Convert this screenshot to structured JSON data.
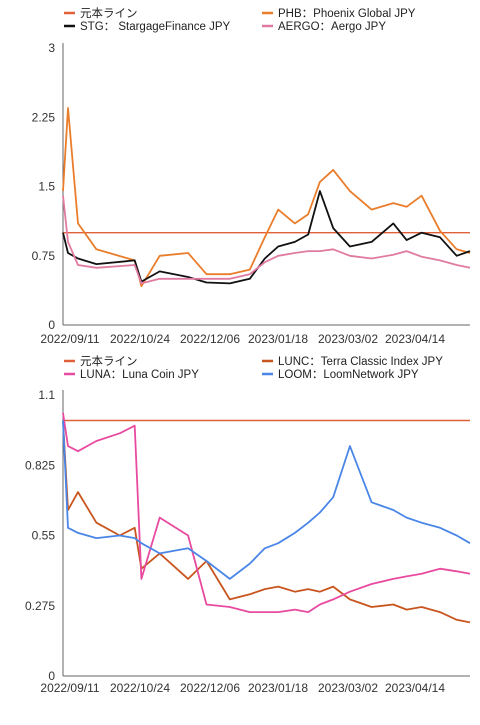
{
  "chart_data": [
    {
      "type": "line",
      "title": "",
      "xlabel": "",
      "ylabel": "",
      "ylim": [
        0,
        3
      ],
      "yticks": [
        "0",
        "0.75",
        "1.5",
        "2.25",
        "3"
      ],
      "xticks": [
        "2022/09/11",
        "2022/10/24",
        "2022/12/06",
        "2023/01/18",
        "2023/03/02",
        "2023/04/14"
      ],
      "x": [
        "2022/09/11",
        "2022/09/14",
        "2022/09/20",
        "2022/10/01",
        "2022/10/24",
        "2022/10/28",
        "2022/11/08",
        "2022/11/25",
        "2022/12/06",
        "2022/12/20",
        "2023/01/01",
        "2023/01/10",
        "2023/01/18",
        "2023/01/28",
        "2023/02/05",
        "2023/02/12",
        "2023/02/20",
        "2023/03/02",
        "2023/03/15",
        "2023/03/28",
        "2023/04/05",
        "2023/04/14",
        "2023/04/25",
        "2023/05/05",
        "2023/05/13"
      ],
      "grid": false,
      "legend_position": "top",
      "series": [
        {
          "name": "元本ライン",
          "color": "#e0603a",
          "values": [
            1,
            1,
            1,
            1,
            1,
            1,
            1,
            1,
            1,
            1,
            1,
            1,
            1,
            1,
            1,
            1,
            1,
            1,
            1,
            1,
            1,
            1,
            1,
            1,
            1
          ]
        },
        {
          "name": "PHB：Phoenix Global JPY",
          "color": "#ea7d2b",
          "values": [
            1.45,
            2.35,
            1.1,
            0.82,
            0.7,
            0.42,
            0.75,
            0.78,
            0.55,
            0.55,
            0.6,
            0.95,
            1.25,
            1.1,
            1.2,
            1.55,
            1.68,
            1.45,
            1.25,
            1.32,
            1.28,
            1.4,
            1.02,
            0.82,
            0.78
          ]
        },
        {
          "name": "STG： StargageFinance JPY",
          "color": "#111111",
          "values": [
            1.0,
            0.78,
            0.72,
            0.66,
            0.7,
            0.47,
            0.58,
            0.52,
            0.46,
            0.45,
            0.5,
            0.72,
            0.85,
            0.9,
            0.98,
            1.45,
            1.05,
            0.85,
            0.9,
            1.1,
            0.92,
            1.0,
            0.95,
            0.75,
            0.8
          ]
        },
        {
          "name": "AERGO：Aergo JPY",
          "color": "#e07aa0",
          "values": [
            1.4,
            0.9,
            0.65,
            0.62,
            0.65,
            0.45,
            0.5,
            0.5,
            0.5,
            0.5,
            0.55,
            0.68,
            0.75,
            0.78,
            0.8,
            0.8,
            0.82,
            0.75,
            0.72,
            0.76,
            0.8,
            0.74,
            0.7,
            0.65,
            0.62
          ]
        }
      ]
    },
    {
      "type": "line",
      "title": "",
      "xlabel": "",
      "ylabel": "",
      "ylim": [
        0,
        1.1
      ],
      "yticks": [
        "0",
        "0.275",
        "0.55",
        "0.825",
        "1.1"
      ],
      "xticks": [
        "2022/09/11",
        "2022/10/24",
        "2022/12/06",
        "2023/01/18",
        "2023/03/02",
        "2023/04/14"
      ],
      "x": [
        "2022/09/11",
        "2022/09/14",
        "2022/09/20",
        "2022/10/01",
        "2022/10/15",
        "2022/10/24",
        "2022/10/28",
        "2022/11/08",
        "2022/11/25",
        "2022/12/06",
        "2022/12/20",
        "2023/01/01",
        "2023/01/10",
        "2023/01/18",
        "2023/01/28",
        "2023/02/05",
        "2023/02/12",
        "2023/02/20",
        "2023/03/02",
        "2023/03/15",
        "2023/03/28",
        "2023/04/05",
        "2023/04/14",
        "2023/04/25",
        "2023/05/05",
        "2023/05/13"
      ],
      "grid": false,
      "legend_position": "top",
      "series": [
        {
          "name": "元本ライン",
          "color": "#e0603a",
          "values": [
            1,
            1,
            1,
            1,
            1,
            1,
            1,
            1,
            1,
            1,
            1,
            1,
            1,
            1,
            1,
            1,
            1,
            1,
            1,
            1,
            1,
            1,
            1,
            1,
            1,
            1
          ]
        },
        {
          "name": "LUNC：Terra Classic Index JPY",
          "color": "#c9551e",
          "values": [
            1.0,
            0.65,
            0.72,
            0.6,
            0.55,
            0.58,
            0.42,
            0.48,
            0.38,
            0.45,
            0.3,
            0.32,
            0.34,
            0.35,
            0.33,
            0.34,
            0.33,
            0.35,
            0.3,
            0.27,
            0.28,
            0.26,
            0.27,
            0.25,
            0.22,
            0.21
          ]
        },
        {
          "name": "LUNA：Luna Coin JPY",
          "color": "#e84aa0",
          "values": [
            1.03,
            0.9,
            0.88,
            0.92,
            0.95,
            0.98,
            0.38,
            0.62,
            0.55,
            0.28,
            0.27,
            0.25,
            0.25,
            0.25,
            0.26,
            0.25,
            0.28,
            0.3,
            0.33,
            0.36,
            0.38,
            0.39,
            0.4,
            0.42,
            0.41,
            0.4
          ]
        },
        {
          "name": "LOOM：LoomNetwork JPY",
          "color": "#4a86e8",
          "values": [
            1.0,
            0.58,
            0.56,
            0.54,
            0.55,
            0.54,
            0.52,
            0.48,
            0.5,
            0.45,
            0.38,
            0.44,
            0.5,
            0.52,
            0.56,
            0.6,
            0.64,
            0.7,
            0.9,
            0.68,
            0.65,
            0.62,
            0.6,
            0.58,
            0.55,
            0.52
          ]
        }
      ]
    }
  ]
}
